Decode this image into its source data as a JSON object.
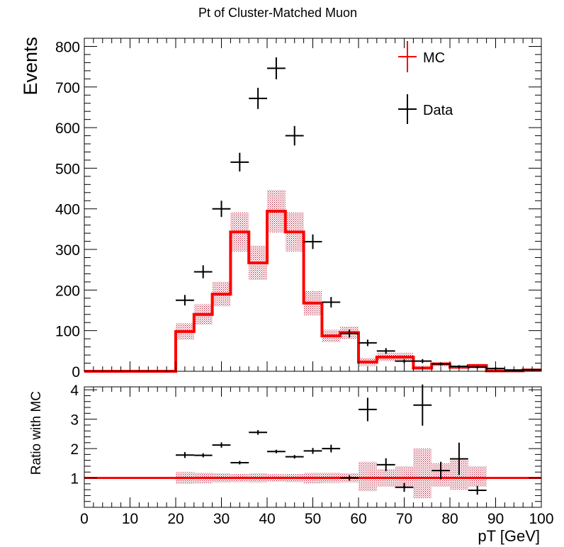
{
  "chart_data": [
    {
      "type": "histogram_with_points",
      "title": "Pt of Cluster-Matched Muon",
      "xlabel": "",
      "ylabel": "Events",
      "xlim": [
        0,
        100
      ],
      "ylim": [
        0,
        820
      ],
      "x_ticks": [
        0,
        10,
        20,
        30,
        40,
        50,
        60,
        70,
        80,
        90,
        100
      ],
      "y_ticks": [
        0,
        100,
        200,
        300,
        400,
        500,
        600,
        700,
        800
      ],
      "legend": {
        "placement": "top-right",
        "entries": [
          {
            "label": "MC",
            "color": "#ff0000",
            "marker": "cross"
          },
          {
            "label": "Data",
            "color": "#000000",
            "marker": "cross"
          }
        ]
      },
      "mc": {
        "name": "MC",
        "color": "#ff0000",
        "bin_edges": [
          0,
          20,
          24,
          28,
          32,
          36,
          40,
          44,
          48,
          52,
          56,
          60,
          64,
          68,
          72,
          76,
          80,
          84,
          88,
          92,
          96,
          100
        ],
        "values": [
          0,
          98,
          140,
          190,
          343,
          267,
          394,
          343,
          168,
          87,
          95,
          23,
          35,
          35,
          8,
          18,
          10,
          14,
          1,
          1,
          3
        ],
        "uncertainty": [
          0,
          20,
          25,
          30,
          48,
          42,
          52,
          48,
          30,
          15,
          15,
          10,
          10,
          10,
          5,
          5,
          4,
          4,
          1,
          1,
          1
        ]
      },
      "data": {
        "name": "Data",
        "color": "#000000",
        "x": [
          22,
          26,
          30,
          34,
          38,
          42,
          46,
          50,
          54,
          58,
          62,
          66,
          70,
          74,
          78,
          82,
          86,
          90,
          94,
          98
        ],
        "xerr": 2,
        "y": [
          175,
          245,
          400,
          515,
          672,
          746,
          580,
          319,
          170,
          93,
          70,
          50,
          25,
          25,
          18,
          12,
          10,
          7,
          3,
          4
        ],
        "yerr": [
          13,
          16,
          20,
          23,
          26,
          27,
          24,
          18,
          13,
          10,
          8,
          7,
          5,
          5,
          4,
          3,
          3,
          3,
          2,
          2
        ]
      }
    },
    {
      "type": "ratio",
      "xlabel": "pT [GeV]",
      "ylabel": "Ratio with MC",
      "xlim": [
        0,
        100
      ],
      "ylim": [
        0,
        4.1
      ],
      "x_ticks": [
        0,
        10,
        20,
        30,
        40,
        50,
        60,
        70,
        80,
        90,
        100
      ],
      "y_ticks": [
        1,
        2,
        3,
        4
      ],
      "reference_line": {
        "y": 1,
        "color": "#ff0000"
      },
      "band": {
        "bin_edges": [
          20,
          24,
          28,
          32,
          36,
          40,
          44,
          48,
          52,
          56,
          60,
          64,
          68,
          72,
          76,
          80,
          84,
          88
        ],
        "low": [
          0.8,
          0.82,
          0.84,
          0.86,
          0.84,
          0.87,
          0.86,
          0.82,
          0.83,
          0.84,
          0.55,
          0.7,
          0.7,
          0.3,
          0.7,
          0.6,
          0.7
        ],
        "high": [
          1.2,
          1.18,
          1.16,
          1.14,
          1.16,
          1.13,
          1.14,
          1.18,
          1.17,
          1.16,
          1.55,
          1.3,
          1.4,
          2.0,
          1.5,
          1.6,
          1.4
        ]
      },
      "points": {
        "x": [
          22,
          26,
          30,
          34,
          38,
          42,
          46,
          50,
          54,
          58,
          62,
          66,
          70,
          74,
          78,
          82,
          86
        ],
        "xerr": 2,
        "y": [
          1.78,
          1.77,
          2.12,
          1.52,
          2.55,
          1.9,
          1.72,
          1.92,
          2.0,
          1.0,
          3.33,
          1.45,
          0.68,
          3.48,
          1.25,
          1.65,
          0.58
        ],
        "yerr": [
          0.1,
          0.07,
          0.09,
          0.06,
          0.08,
          0.06,
          0.06,
          0.1,
          0.13,
          0.09,
          0.4,
          0.22,
          0.15,
          0.7,
          0.3,
          0.55,
          0.15
        ]
      }
    }
  ]
}
